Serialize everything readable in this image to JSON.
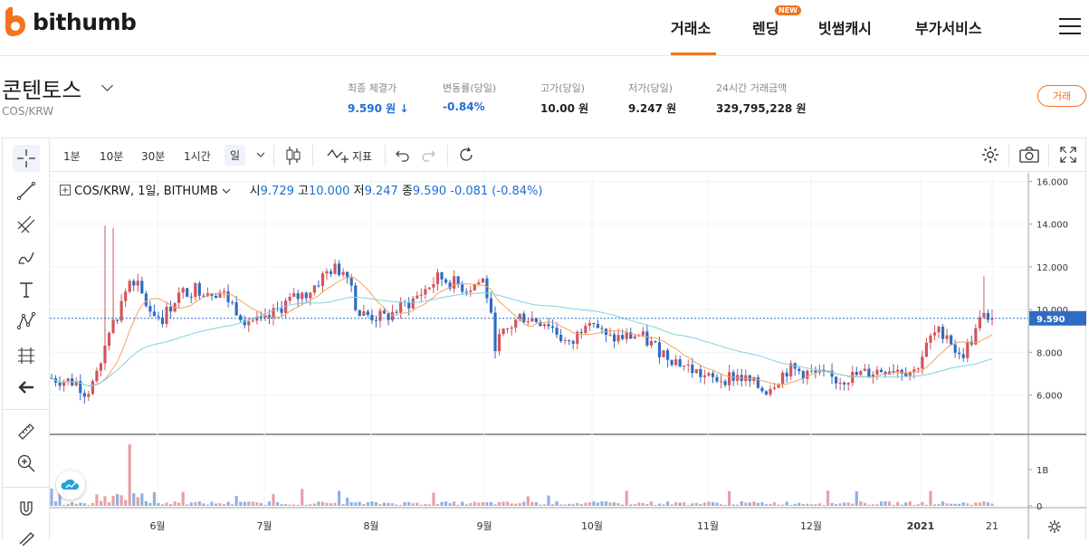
{
  "header": {
    "logo_text": "bithumb",
    "nav": [
      {
        "label": "거래소",
        "active": true
      },
      {
        "label": "렌딩",
        "badge": "NEW"
      },
      {
        "label": "빗썸캐시"
      },
      {
        "label": "부가서비스"
      }
    ],
    "menu_icon": "hamburger-icon"
  },
  "ticker": {
    "name": "콘텐토스",
    "pair": "COS/KRW",
    "stats": [
      {
        "label": "최종 체결가",
        "value": "9.590 원 ↓",
        "color": "#1f6ed4"
      },
      {
        "label": "변동률(당일)",
        "value": "-0.84%",
        "color": "#1f6ed4"
      },
      {
        "label": "고가(당일)",
        "value": "10.00 원"
      },
      {
        "label": "저가(당일)",
        "value": "9.247 원"
      },
      {
        "label": "24시간 거래금액",
        "value": "329,795,228 원"
      }
    ],
    "trade_button": "거래"
  },
  "toolbar": {
    "timeframes": [
      "1분",
      "10분",
      "30분",
      "1시간",
      "일"
    ],
    "selected_timeframe": "일",
    "indicator_label": "지표"
  },
  "legend": {
    "symbol": "COS/KRW, 1일, BITHUMB",
    "open_label": "시",
    "open": "9.729",
    "high_label": "고",
    "high": "10.000",
    "low_label": "저",
    "low": "9.247",
    "close_label": "종",
    "close": "9.590",
    "change": "-0.081 (-0.84%)"
  },
  "colors": {
    "up": "#d3545c",
    "down": "#2f6bc4",
    "ma_short": "#f4a35f",
    "ma_long": "#7fd3e0",
    "accent": "#f37321"
  },
  "chart_data": {
    "type": "candlestick",
    "last_price": "9.590",
    "y_ticks": [
      "16.000",
      "14.000",
      "12.000",
      "10.000",
      "8.000",
      "6.000"
    ],
    "y_range": [
      4.2,
      16.4
    ],
    "volume_ticks": [
      "1B",
      "0"
    ],
    "x_ticks": [
      "6월",
      "7월",
      "8월",
      "9월",
      "10월",
      "11월",
      "12월",
      "2021",
      "21"
    ]
  }
}
